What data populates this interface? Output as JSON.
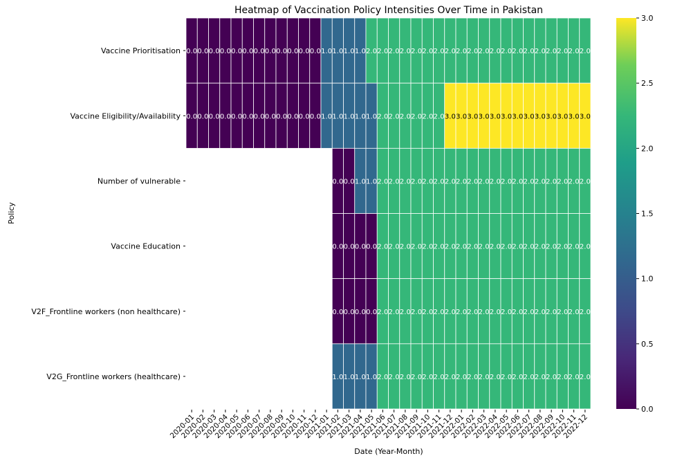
{
  "chart_data": {
    "type": "heatmap",
    "title": "Heatmap of Vaccination Policy Intensities Over Time in Pakistan",
    "xlabel": "Date (Year-Month)",
    "ylabel": "Policy",
    "x": [
      "2020-01",
      "2020-02",
      "2020-03",
      "2020-04",
      "2020-05",
      "2020-06",
      "2020-07",
      "2020-08",
      "2020-09",
      "2020-10",
      "2020-11",
      "2020-12",
      "2021-01",
      "2021-02",
      "2021-03",
      "2021-04",
      "2021-05",
      "2021-06",
      "2021-07",
      "2021-08",
      "2021-09",
      "2021-10",
      "2021-11",
      "2021-12",
      "2022-01",
      "2022-02",
      "2022-03",
      "2022-04",
      "2022-05",
      "2022-06",
      "2022-07",
      "2022-08",
      "2022-09",
      "2022-10",
      "2022-11",
      "2022-12"
    ],
    "rows": [
      {
        "name": "Vaccine Prioritisation",
        "values": [
          0,
          0,
          0,
          0,
          0,
          0,
          0,
          0,
          0,
          0,
          0,
          0,
          1,
          1,
          1,
          1,
          2,
          2,
          2,
          2,
          2,
          2,
          2,
          2,
          2,
          2,
          2,
          2,
          2,
          2,
          2,
          2,
          2,
          2,
          2,
          2
        ]
      },
      {
        "name": "Vaccine Eligibility/Availability",
        "values": [
          0,
          0,
          0,
          0,
          0,
          0,
          0,
          0,
          0,
          0,
          0,
          0,
          1,
          1,
          1,
          1,
          1,
          2,
          2,
          2,
          2,
          2,
          2,
          3,
          3,
          3,
          3,
          3,
          3,
          3,
          3,
          3,
          3,
          3,
          3,
          3
        ]
      },
      {
        "name": "Number of vulnerable",
        "values": [
          null,
          null,
          null,
          null,
          null,
          null,
          null,
          null,
          null,
          null,
          null,
          null,
          null,
          0,
          0,
          1,
          1,
          2,
          2,
          2,
          2,
          2,
          2,
          2,
          2,
          2,
          2,
          2,
          2,
          2,
          2,
          2,
          2,
          2,
          2,
          2
        ]
      },
      {
        "name": "Vaccine Education",
        "values": [
          null,
          null,
          null,
          null,
          null,
          null,
          null,
          null,
          null,
          null,
          null,
          null,
          null,
          0,
          0,
          0,
          0,
          2,
          2,
          2,
          2,
          2,
          2,
          2,
          2,
          2,
          2,
          2,
          2,
          2,
          2,
          2,
          2,
          2,
          2,
          2
        ]
      },
      {
        "name": "V2F_Frontline workers  (non healthcare)",
        "values": [
          null,
          null,
          null,
          null,
          null,
          null,
          null,
          null,
          null,
          null,
          null,
          null,
          null,
          0,
          0,
          0,
          0,
          2,
          2,
          2,
          2,
          2,
          2,
          2,
          2,
          2,
          2,
          2,
          2,
          2,
          2,
          2,
          2,
          2,
          2,
          2
        ]
      },
      {
        "name": "V2G_Frontline workers  (healthcare)",
        "values": [
          null,
          null,
          null,
          null,
          null,
          null,
          null,
          null,
          null,
          null,
          null,
          null,
          null,
          1,
          1,
          1,
          1,
          2,
          2,
          2,
          2,
          2,
          2,
          2,
          2,
          2,
          2,
          2,
          2,
          2,
          2,
          2,
          2,
          2,
          2,
          2
        ]
      }
    ],
    "value_format": "0.0",
    "colormap": "viridis",
    "colors": {
      "0": "#440154",
      "1": "#31688e",
      "2": "#35b779",
      "3": "#fde725"
    },
    "colorbar": {
      "range": [
        0,
        3
      ],
      "ticks": [
        "0.0",
        "0.5",
        "1.0",
        "1.5",
        "2.0",
        "2.5",
        "3.0"
      ]
    },
    "grid_lines": "white"
  }
}
